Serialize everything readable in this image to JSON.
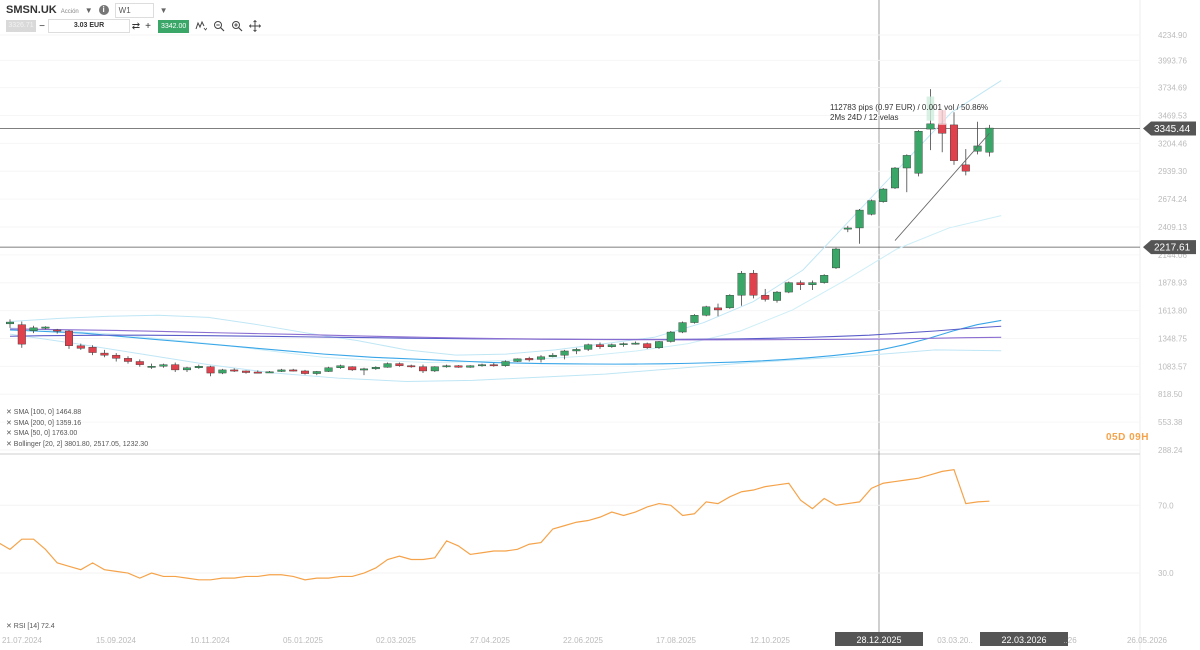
{
  "header": {
    "symbol": "SMSN.UK",
    "symbol_sub": "Acción",
    "symbol_caret": "▼",
    "info_icon": "i",
    "timeframe": "W1",
    "timeframe_caret": "▼",
    "bid_label": "3326.71",
    "qty_minus": "−",
    "qty_value": "3.03 EUR",
    "qty_swap_icon": "⇄",
    "qty_plus": "+",
    "ask_label": "3342.00",
    "tool_icons": [
      "ruler-icon",
      "zoom-out-icon",
      "zoom-in-icon",
      "crosshair-move-icon"
    ]
  },
  "overlay": {
    "measure_line1": "112783 pips (0.97 EUR) / 0.001 vol / 50.86%",
    "measure_line2": "2Ms 24D / 12 velas",
    "countdown": "05D 09H"
  },
  "legend": {
    "sma100": "✕ SMA [100, 0] 1464.88",
    "sma200": "✕ SMA [200, 0] 1359.16",
    "sma50": "✕ SMA [50, 0] 1763.00",
    "bollinger": "✕ Bollinger [20, 2] 3801.80, 2517.05, 1232.30",
    "rsi": "✕ RSI [14] 72.4"
  },
  "colors": {
    "up": "#3aa768",
    "down": "#e0424d",
    "sma100": "#5b5ec9",
    "sma200": "#8c6fd1",
    "sma50": "#39a6e8",
    "bollinger": "#bfe6f5",
    "rsi": "#f5a34a",
    "ask": "#3aa768"
  },
  "chart_data": {
    "type": "candlestick",
    "symbol": "SMSN.UK",
    "timeframe": "W1",
    "price_axis_ticks": [
      "4234.90",
      "3993.76",
      "3734.69",
      "3469.53",
      "3204.46",
      "2939.30",
      "2674.24",
      "2409.13",
      "2144.06",
      "1878.93",
      "1613.80",
      "1348.75",
      "1083.57",
      "818.50",
      "553.38",
      "288.24"
    ],
    "price_range": [
      288.24,
      4234.9
    ],
    "current_price_label": "3345.44",
    "horizontal_line_label": "2217.61",
    "time_axis_labels": [
      "21.07.2024",
      "15.09.2024",
      "10.11.2024",
      "05.01.2025",
      "02.03.2025",
      "27.04.2025",
      "22.06.2025",
      "17.08.2025",
      "12.10.2025",
      "28.12.2025",
      "03.03.20..",
      "22.03.2026",
      "..26",
      "26.05.2026"
    ],
    "highlighted_time_labels": [
      "28.12.2025",
      "22.03.2026"
    ],
    "ohlc": [
      [
        1488,
        1530,
        1450,
        1505
      ],
      [
        1480,
        1510,
        1260,
        1295
      ],
      [
        1422,
        1470,
        1400,
        1450
      ],
      [
        1450,
        1465,
        1435,
        1458
      ],
      [
        1430,
        1440,
        1395,
        1420
      ],
      [
        1420,
        1430,
        1250,
        1280
      ],
      [
        1280,
        1300,
        1240,
        1255
      ],
      [
        1265,
        1285,
        1190,
        1215
      ],
      [
        1210,
        1240,
        1170,
        1190
      ],
      [
        1190,
        1210,
        1130,
        1160
      ],
      [
        1160,
        1180,
        1110,
        1130
      ],
      [
        1130,
        1150,
        1080,
        1100
      ],
      [
        1080,
        1110,
        1060,
        1085
      ],
      [
        1085,
        1110,
        1070,
        1100
      ],
      [
        1100,
        1120,
        1030,
        1050
      ],
      [
        1050,
        1080,
        1030,
        1070
      ],
      [
        1070,
        1100,
        1060,
        1085
      ],
      [
        1080,
        1090,
        990,
        1020
      ],
      [
        1020,
        1060,
        1010,
        1050
      ],
      [
        1050,
        1065,
        1030,
        1040
      ],
      [
        1040,
        1045,
        1015,
        1025
      ],
      [
        1030,
        1045,
        1020,
        1028
      ],
      [
        1025,
        1040,
        1020,
        1032
      ],
      [
        1035,
        1060,
        1030,
        1050
      ],
      [
        1050,
        1060,
        1035,
        1040
      ],
      [
        1040,
        1050,
        1005,
        1015
      ],
      [
        1015,
        1040,
        1000,
        1035
      ],
      [
        1035,
        1080,
        1030,
        1070
      ],
      [
        1070,
        1100,
        1060,
        1090
      ],
      [
        1080,
        1085,
        1040,
        1050
      ],
      [
        1050,
        1070,
        1000,
        1060
      ],
      [
        1060,
        1085,
        1050,
        1075
      ],
      [
        1075,
        1120,
        1070,
        1110
      ],
      [
        1110,
        1120,
        1080,
        1090
      ],
      [
        1090,
        1100,
        1070,
        1080
      ],
      [
        1080,
        1100,
        1020,
        1040
      ],
      [
        1040,
        1085,
        1030,
        1080
      ],
      [
        1080,
        1100,
        1070,
        1090
      ],
      [
        1090,
        1095,
        1070,
        1075
      ],
      [
        1075,
        1095,
        1070,
        1090
      ],
      [
        1090,
        1110,
        1080,
        1100
      ],
      [
        1100,
        1115,
        1080,
        1090
      ],
      [
        1090,
        1140,
        1080,
        1130
      ],
      [
        1130,
        1160,
        1125,
        1155
      ],
      [
        1160,
        1175,
        1130,
        1145
      ],
      [
        1150,
        1190,
        1120,
        1175
      ],
      [
        1175,
        1210,
        1170,
        1190
      ],
      [
        1190,
        1240,
        1150,
        1230
      ],
      [
        1230,
        1260,
        1200,
        1245
      ],
      [
        1245,
        1300,
        1230,
        1290
      ],
      [
        1290,
        1310,
        1250,
        1270
      ],
      [
        1270,
        1300,
        1260,
        1290
      ],
      [
        1290,
        1310,
        1270,
        1300
      ],
      [
        1300,
        1320,
        1290,
        1305
      ],
      [
        1300,
        1310,
        1250,
        1260
      ],
      [
        1260,
        1325,
        1250,
        1320
      ],
      [
        1320,
        1420,
        1310,
        1410
      ],
      [
        1410,
        1510,
        1400,
        1500
      ],
      [
        1500,
        1580,
        1490,
        1570
      ],
      [
        1570,
        1660,
        1560,
        1650
      ],
      [
        1640,
        1680,
        1560,
        1620
      ],
      [
        1640,
        1770,
        1630,
        1760
      ],
      [
        1760,
        1990,
        1660,
        1970
      ],
      [
        1970,
        2000,
        1730,
        1760
      ],
      [
        1760,
        1820,
        1700,
        1720
      ],
      [
        1710,
        1800,
        1690,
        1790
      ],
      [
        1790,
        1890,
        1780,
        1880
      ],
      [
        1880,
        1900,
        1810,
        1860
      ],
      [
        1860,
        1900,
        1810,
        1880
      ],
      [
        1880,
        1960,
        1870,
        1950
      ],
      [
        2020,
        2210,
        2010,
        2200
      ],
      [
        2390,
        2420,
        2360,
        2400
      ],
      [
        2400,
        2580,
        2250,
        2570
      ],
      [
        2530,
        2670,
        2520,
        2660
      ],
      [
        2650,
        2780,
        2640,
        2770
      ],
      [
        2780,
        2980,
        2770,
        2970
      ],
      [
        2970,
        3100,
        2740,
        3090
      ],
      [
        2920,
        3330,
        2890,
        3320
      ],
      [
        3340,
        3720,
        3140,
        3390
      ],
      [
        3390,
        3520,
        3120,
        3300
      ],
      [
        3380,
        3500,
        3000,
        3040
      ],
      [
        3000,
        3150,
        2900,
        2940
      ],
      [
        3130,
        3410,
        3100,
        3180
      ],
      [
        3120,
        3380,
        3080,
        3350
      ]
    ],
    "sma50": [
      1430,
      1420,
      1410,
      1400,
      1380,
      1360,
      1340,
      1320,
      1300,
      1280,
      1260,
      1240,
      1220,
      1200,
      1185,
      1170,
      1160,
      1150,
      1140,
      1130,
      1120,
      1115,
      1110,
      1108,
      1106,
      1105,
      1106,
      1108,
      1112,
      1118,
      1125,
      1135,
      1148,
      1165,
      1185,
      1210,
      1240,
      1290,
      1350,
      1420,
      1480,
      1520
    ],
    "sma100": [
      1370,
      1375,
      1378,
      1380,
      1380,
      1378,
      1375,
      1372,
      1368,
      1364,
      1360,
      1356,
      1352,
      1349,
      1346,
      1344,
      1342,
      1341,
      1340,
      1340,
      1340,
      1342,
      1345,
      1350,
      1358,
      1368,
      1380,
      1400,
      1420,
      1445,
      1465
    ],
    "sma200": [
      1440,
      1435,
      1430,
      1425,
      1418,
      1410,
      1402,
      1395,
      1388,
      1380,
      1372,
      1365,
      1358,
      1352,
      1347,
      1343,
      1340,
      1338,
      1337,
      1336,
      1336,
      1337,
      1338,
      1340,
      1342,
      1345,
      1350,
      1356,
      1360
    ],
    "bb_upper": [
      1510,
      1540,
      1560,
      1570,
      1550,
      1480,
      1400,
      1330,
      1240,
      1190,
      1200,
      1240,
      1300,
      1360,
      1500,
      1700,
      2000,
      2500,
      3000,
      3500,
      3801.8
    ],
    "bb_mid": [
      1450,
      1420,
      1390,
      1340,
      1290,
      1230,
      1170,
      1140,
      1120,
      1130,
      1150,
      1180,
      1230,
      1300,
      1420,
      1620,
      1900,
      2200,
      2400,
      2517.05
    ],
    "bb_lower": [
      1390,
      1300,
      1200,
      1100,
      1020,
      970,
      940,
      950,
      980,
      1010,
      1060,
      1110,
      1150,
      1190,
      1240,
      1232.3
    ],
    "rsi": {
      "label": "RSI [14] 72.4",
      "levels": [
        70,
        30
      ],
      "axis_labels": [
        "70.0",
        "30.0"
      ],
      "values": [
        48,
        44,
        50,
        50,
        44,
        36,
        34,
        32,
        36,
        32,
        31,
        30,
        27,
        30,
        28,
        28,
        27,
        26,
        26,
        27,
        27,
        28,
        28,
        29,
        29,
        28,
        26,
        27,
        27,
        28,
        28,
        30,
        33,
        38,
        40,
        38,
        38,
        39,
        49,
        46,
        41,
        42,
        43,
        43,
        44,
        47,
        48,
        56,
        58,
        60,
        61,
        63,
        66,
        64,
        66,
        69,
        71,
        70,
        64,
        65,
        72,
        71,
        75,
        78,
        79,
        81,
        82,
        83,
        73,
        68,
        74,
        70,
        71,
        72,
        80,
        83,
        84,
        85,
        86,
        88,
        90,
        91,
        71,
        72,
        72.4
      ]
    }
  }
}
